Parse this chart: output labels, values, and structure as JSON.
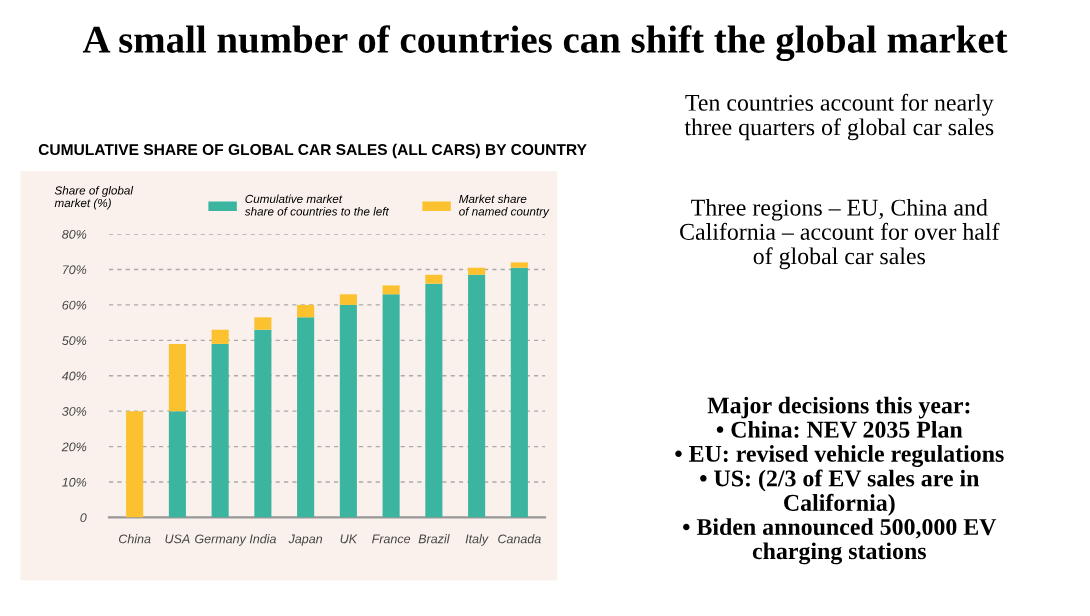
{
  "chart_data": {
    "type": "bar",
    "stacked": true,
    "title": "A small number of countries can shift the global market",
    "subtitle": "CUMULATIVE SHARE OF GLOBAL CAR SALES (ALL CARS) BY COUNTRY",
    "ylabel": "Share of global\nmarket (%)",
    "categories": [
      "China",
      "USA",
      "Germany",
      "India",
      "Japan",
      "UK",
      "France",
      "Brazil",
      "Italy",
      "Canada"
    ],
    "series": [
      {
        "name": "Cumulative market\nshare of countries to the left",
        "color": "#3bb5a0",
        "values": [
          0,
          30,
          49,
          53,
          56.5,
          60,
          63,
          66,
          68.5,
          70.5
        ]
      },
      {
        "name": "Market share\nof named country",
        "color": "#fbc12f",
        "values": [
          30,
          19,
          4,
          3.5,
          3.5,
          3,
          2.5,
          2.5,
          2,
          1.5
        ]
      }
    ],
    "ylim": [
      0,
      80
    ],
    "yticks": [
      0,
      {
        "value": 10,
        "label": "10%"
      },
      {
        "value": 20,
        "label": "20%"
      },
      {
        "value": 30,
        "label": "30%"
      },
      {
        "value": 40,
        "label": "40%"
      },
      {
        "value": 50,
        "label": "50%"
      },
      {
        "value": 60,
        "label": "60%"
      },
      {
        "value": 70,
        "label": "70%"
      },
      {
        "value": 80,
        "label": "80%"
      }
    ],
    "grid": "y",
    "legend": "top",
    "annotations": [
      "Ten countries account for nearly\nthree quarters of global car sales",
      "Three regions – EU, China and\nCalifornia – account for over half\nof global car sales",
      "Major decisions this year:\n• China: NEV 2035 Plan\n• EU: revised vehicle regulations\n• US: (2/3 of EV sales are in\nCalifornia)\n• Biden announced 500,000 EV\ncharging stations"
    ]
  }
}
